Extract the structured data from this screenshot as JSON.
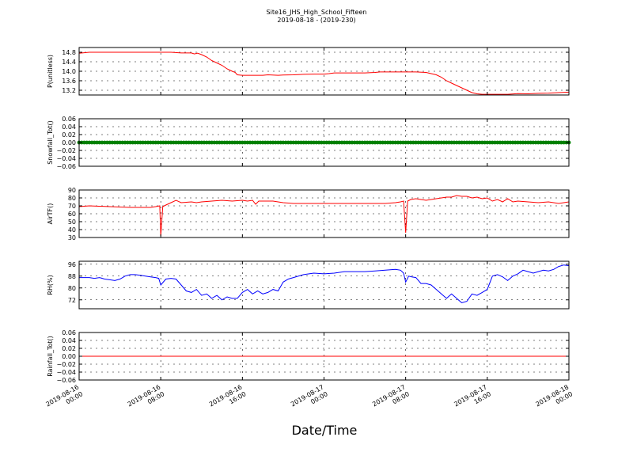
{
  "figure": {
    "title": "Site16_JHS_High_School_Fifteen",
    "subtitle": "2019-08-18 - (2019-230)",
    "xlabel": "Date/Time"
  },
  "x_ticks": [
    {
      "hours": 0,
      "line1": "2019-08-16",
      "line2": "00:00"
    },
    {
      "hours": 8,
      "line1": "2019-08-16",
      "line2": "08:00"
    },
    {
      "hours": 16,
      "line1": "2019-08-16",
      "line2": "16:00"
    },
    {
      "hours": 24,
      "line1": "2019-08-17",
      "line2": "00:00"
    },
    {
      "hours": 32,
      "line1": "2019-08-17",
      "line2": "08:00"
    },
    {
      "hours": 40,
      "line1": "2019-08-17",
      "line2": "16:00"
    },
    {
      "hours": 48,
      "line1": "2019-08-18",
      "line2": "00:00"
    }
  ],
  "chart_data": [
    {
      "type": "line",
      "ylabel": "P(unitless)",
      "color": "#ff0000",
      "ylim": [
        13.0,
        15.0
      ],
      "yticks": [
        13.2,
        13.6,
        14.0,
        14.4,
        14.8
      ],
      "ytick_labels": [
        "13.2",
        "13.6",
        "14.0",
        "14.4",
        "14.8"
      ],
      "grid": true,
      "x_hours": [
        0,
        1,
        3,
        8,
        9,
        10,
        11,
        11.3,
        11.6,
        12,
        12.5,
        13,
        13.5,
        14,
        14.5,
        15,
        15.3,
        15.5,
        16,
        18,
        18.5,
        19.5,
        20,
        21,
        22,
        23,
        24,
        24.5,
        25,
        26,
        27,
        28,
        29,
        29.5,
        30,
        31,
        32,
        33,
        34,
        34.5,
        35,
        35.5,
        36,
        36.5,
        37,
        37.5,
        38,
        38.5,
        39,
        39.5,
        40,
        41,
        42,
        43,
        44,
        45,
        46,
        47,
        48
      ],
      "values": [
        14.76,
        14.8,
        14.8,
        14.8,
        14.8,
        14.77,
        14.77,
        14.73,
        14.76,
        14.7,
        14.6,
        14.45,
        14.35,
        14.25,
        14.1,
        14.0,
        13.95,
        13.85,
        13.83,
        13.83,
        13.85,
        13.83,
        13.84,
        13.85,
        13.87,
        13.88,
        13.88,
        13.9,
        13.93,
        13.93,
        13.93,
        13.93,
        13.95,
        13.97,
        13.97,
        13.97,
        13.97,
        13.97,
        13.95,
        13.9,
        13.85,
        13.75,
        13.6,
        13.5,
        13.4,
        13.3,
        13.2,
        13.1,
        13.05,
        13.03,
        13.03,
        13.03,
        13.03,
        13.06,
        13.05,
        13.07,
        13.08,
        13.1,
        13.12
      ]
    },
    {
      "type": "scatter",
      "ylabel": "Snowfall_Tot()",
      "color": "#008000",
      "ylim": [
        -0.06,
        0.06
      ],
      "yticks": [
        -0.06,
        -0.04,
        -0.02,
        0.0,
        0.02,
        0.04,
        0.06
      ],
      "ytick_labels": [
        "−0.06",
        "−0.04",
        "−0.02",
        "0.00",
        "0.02",
        "0.04",
        "0.06"
      ],
      "grid": true,
      "constant_value": 0.0,
      "x_range_hours": [
        0,
        48
      ]
    },
    {
      "type": "line",
      "ylabel": "AirTF()",
      "color": "#ff0000",
      "ylim": [
        30,
        90
      ],
      "yticks": [
        30,
        40,
        50,
        60,
        70,
        80,
        90
      ],
      "ytick_labels": [
        "30",
        "40",
        "50",
        "60",
        "70",
        "80",
        "90"
      ],
      "grid": true,
      "x_hours": [
        0,
        1,
        3,
        5,
        6,
        7,
        7.5,
        7.9,
        8.0,
        8.2,
        8.5,
        9,
        9.5,
        10,
        11,
        11.5,
        12,
        13,
        14,
        15,
        16,
        16.5,
        17,
        17.3,
        17.6,
        18,
        19,
        20,
        21,
        22,
        24,
        26,
        28,
        30,
        31,
        31.5,
        31.8,
        32.0,
        32.2,
        32.5,
        33,
        34,
        35,
        35.5,
        36,
        36.5,
        37,
        37.5,
        38,
        38.5,
        39,
        39.5,
        40,
        40.5,
        41,
        41.5,
        42,
        42.5,
        43,
        44,
        45,
        46,
        47,
        48
      ],
      "values": [
        69,
        70,
        69,
        68,
        68,
        68,
        69,
        70,
        32,
        69,
        71,
        74,
        77,
        74,
        75,
        74,
        75,
        76,
        77,
        76,
        77,
        76,
        77,
        72,
        76,
        76,
        76,
        74,
        73,
        73,
        73,
        73,
        73,
        73,
        74,
        75,
        76,
        36,
        76,
        78,
        79,
        77,
        79,
        80,
        81,
        81,
        83,
        82,
        82,
        80,
        81,
        79,
        80,
        76,
        78,
        75,
        79,
        75,
        76,
        75,
        74,
        75,
        73,
        75
      ]
    },
    {
      "type": "line",
      "ylabel": "RH(%)",
      "color": "#0000ff",
      "ylim": [
        66,
        98
      ],
      "yticks": [
        72,
        80,
        88,
        96
      ],
      "ytick_labels": [
        "72",
        "80",
        "88",
        "96"
      ],
      "grid": true,
      "x_hours": [
        0,
        1,
        1.5,
        2,
        2.5,
        3,
        3.5,
        4,
        4.5,
        5,
        5.5,
        6,
        6.5,
        7,
        7.5,
        7.8,
        8.0,
        8.5,
        9,
        9.5,
        10,
        10.5,
        11,
        11.5,
        12,
        12.5,
        13,
        13.5,
        14,
        14.5,
        15,
        15.5,
        16,
        16.5,
        17,
        17.5,
        18,
        18.5,
        19,
        19.5,
        20,
        20.5,
        21,
        22,
        23,
        24,
        25,
        26,
        27,
        28,
        29,
        30,
        31,
        31.5,
        31.8,
        32.0,
        32.3,
        32.6,
        33,
        33.5,
        34,
        34.5,
        35,
        35.5,
        36,
        36.5,
        37,
        37.5,
        38,
        38.5,
        39,
        39.5,
        40,
        40.5,
        41,
        41.5,
        42,
        42.5,
        43,
        43.5,
        44,
        44.5,
        45,
        45.5,
        46,
        46.5,
        47,
        47.5,
        48
      ],
      "values": [
        87,
        87,
        86.5,
        87,
        86,
        85.5,
        85,
        86,
        88,
        89,
        89,
        88.5,
        88,
        87.5,
        87,
        86.5,
        82,
        86,
        86.5,
        86,
        82,
        78,
        77,
        79,
        75,
        76,
        73,
        75,
        72,
        74,
        73,
        73,
        77,
        79,
        76,
        78,
        76,
        77,
        79,
        78,
        84,
        86,
        87,
        89,
        90,
        89.5,
        90,
        91,
        91,
        91,
        91.5,
        92,
        92.5,
        92,
        90,
        84,
        88,
        87.5,
        87,
        83,
        83,
        82,
        79,
        76,
        73,
        76,
        73,
        70,
        71,
        76,
        75,
        77,
        79,
        88,
        89,
        87.5,
        85,
        88,
        89.5,
        92,
        91,
        90,
        91,
        92,
        91.5,
        92.5,
        94.5,
        95.5,
        95
      ]
    },
    {
      "type": "line",
      "ylabel": "Rainfall_Tot()",
      "color": "#ff0000",
      "ylim": [
        -0.06,
        0.06
      ],
      "yticks": [
        -0.06,
        -0.04,
        -0.02,
        0.0,
        0.02,
        0.04,
        0.06
      ],
      "ytick_labels": [
        "−0.06",
        "−0.04",
        "−0.02",
        "0.00",
        "0.02",
        "0.04",
        "0.06"
      ],
      "grid": true,
      "x_hours": [
        0,
        48
      ],
      "values": [
        0.0,
        0.0
      ]
    }
  ]
}
